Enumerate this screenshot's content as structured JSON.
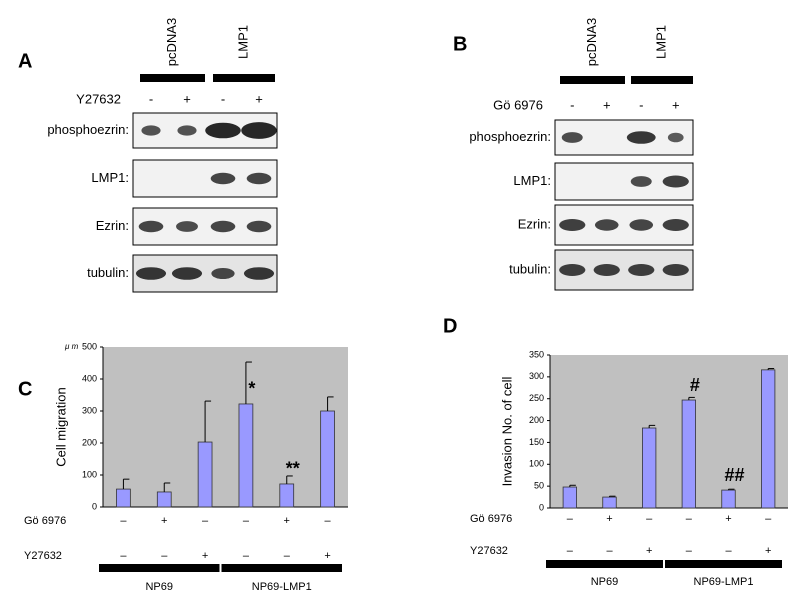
{
  "blots": [
    {
      "label": "A",
      "columns": [
        "pcDNA3",
        "LMP1"
      ],
      "treatment": "Y27632",
      "signs": [
        "-",
        "+",
        "-",
        "+"
      ],
      "rows": [
        "phosphoezrin:",
        "LMP1:",
        "Ezrin:",
        "tubulin:"
      ]
    },
    {
      "label": "B",
      "columns": [
        "pcDNA3",
        "LMP1"
      ],
      "treatment": "Gö 6976",
      "signs": [
        "-",
        "+",
        "-",
        "+"
      ],
      "rows": [
        "phosphoezrin:",
        "LMP1:",
        "Ezrin:",
        "tubulin:"
      ]
    }
  ],
  "chart_data": [
    {
      "type": "bar",
      "panel_label": "C",
      "unit": "μ m",
      "ylabel": "Cell migration",
      "ylim": [
        0,
        500
      ],
      "yticks": [
        0,
        100,
        200,
        300,
        400,
        500
      ],
      "plot_background": "#c0c0c0",
      "series": [
        {
          "color": "#9999ff",
          "values": [
            56,
            47,
            203,
            322,
            72,
            300
          ],
          "errors": [
            31,
            28,
            128,
            131,
            25,
            44
          ]
        }
      ],
      "value_annotations": [
        null,
        null,
        null,
        "*",
        "**",
        null
      ],
      "rows": [
        {
          "name": "Gö 6976",
          "signs": [
            "–",
            "+",
            "–",
            "–",
            "+",
            "–"
          ]
        },
        {
          "name": "Y27632",
          "signs": [
            "–",
            "–",
            "+",
            "–",
            "–",
            "+"
          ]
        }
      ],
      "groups": [
        "NP69",
        "NP69-LMP1"
      ]
    },
    {
      "type": "bar",
      "panel_label": "D",
      "ylabel": "Invasion No. of cell",
      "ylim": [
        0,
        350
      ],
      "yticks": [
        0,
        50,
        100,
        150,
        200,
        250,
        300,
        350
      ],
      "plot_background": "#c0c0c0",
      "series": [
        {
          "color": "#9999ff",
          "values": [
            48,
            25,
            183,
            247,
            41,
            316
          ],
          "errors": [
            4,
            2,
            6,
            6,
            2,
            3
          ]
        }
      ],
      "value_annotations": [
        null,
        null,
        null,
        "#",
        "##",
        null
      ],
      "rows": [
        {
          "name": "Gö 6976",
          "signs": [
            "–",
            "+",
            "–",
            "–",
            "+",
            "–"
          ]
        },
        {
          "name": "Y27632",
          "signs": [
            "–",
            "–",
            "+",
            "–",
            "–",
            "+"
          ]
        }
      ],
      "groups": [
        "NP69",
        "NP69-LMP1"
      ]
    }
  ]
}
